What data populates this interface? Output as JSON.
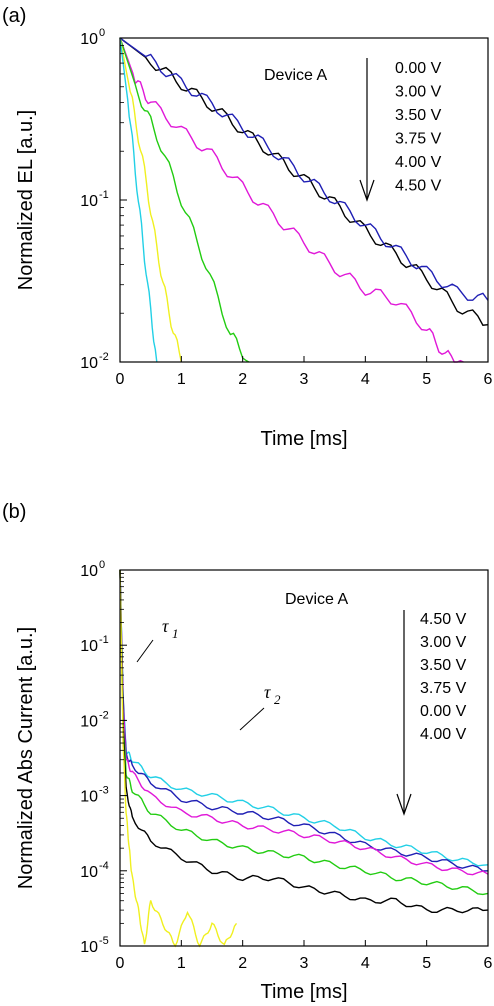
{
  "chart_data": [
    {
      "panel_label": "(a)",
      "type": "line",
      "xlabel": "Time [ms]",
      "ylabel": "Normalized EL [a.u.]",
      "xlim": [
        0,
        6
      ],
      "ylim": [
        0.01,
        1
      ],
      "yscale": "log",
      "xticks": [
        "0",
        "1",
        "2",
        "3",
        "4",
        "5",
        "6"
      ],
      "yticks": [
        {
          "base": "10",
          "exp": "0",
          "value": 1
        },
        {
          "base": "10",
          "exp": "-1",
          "value": 0.1
        },
        {
          "base": "10",
          "exp": "-2",
          "value": 0.01
        }
      ],
      "annotation": "Device A",
      "legend_placement": "top-right",
      "legend": [
        "0.00 V",
        "3.00 V",
        "3.50 V",
        "3.75 V",
        "4.00 V",
        "4.50 V"
      ],
      "series": [
        {
          "color": "#000000",
          "x": [
            0,
            0.5,
            1,
            1.5,
            2,
            2.5,
            3,
            3.5,
            4,
            4.5,
            5,
            5.5,
            6
          ],
          "y": [
            1,
            0.72,
            0.52,
            0.38,
            0.27,
            0.19,
            0.135,
            0.095,
            0.065,
            0.046,
            0.033,
            0.022,
            0.017
          ]
        },
        {
          "color": "#1f1fb4",
          "x": [
            0,
            0.5,
            1,
            1.5,
            2,
            2.5,
            3,
            3.5,
            4,
            4.5,
            5,
            5.5,
            6
          ],
          "y": [
            1,
            0.73,
            0.53,
            0.39,
            0.28,
            0.2,
            0.14,
            0.1,
            0.07,
            0.05,
            0.036,
            0.027,
            0.024
          ]
        },
        {
          "color": "#e018d8",
          "x": [
            0,
            0.25,
            0.5,
            1,
            1.5,
            2,
            2.5,
            3,
            3.5,
            4,
            4.5,
            5,
            5.3,
            5.6
          ],
          "y": [
            1,
            0.55,
            0.4,
            0.27,
            0.19,
            0.12,
            0.08,
            0.055,
            0.038,
            0.028,
            0.024,
            0.016,
            0.011,
            0.01
          ]
        },
        {
          "color": "#22cc11",
          "x": [
            0,
            0.3,
            0.6,
            1,
            1.4,
            1.8,
            2.1
          ],
          "y": [
            1,
            0.45,
            0.25,
            0.1,
            0.04,
            0.015,
            0.01
          ]
        },
        {
          "color": "#f0f020",
          "x": [
            0,
            0.2,
            0.4,
            0.6,
            0.8,
            1.0
          ],
          "y": [
            1,
            0.4,
            0.15,
            0.05,
            0.02,
            0.01
          ]
        },
        {
          "color": "#22d0e6",
          "x": [
            0,
            0.15,
            0.3,
            0.45,
            0.6
          ],
          "y": [
            1,
            0.35,
            0.1,
            0.03,
            0.01
          ]
        }
      ]
    },
    {
      "panel_label": "(b)",
      "type": "line",
      "xlabel": "Time [ms]",
      "ylabel": "Normalized Abs Current [a.u.]",
      "xlim": [
        0,
        6
      ],
      "ylim": [
        1e-05,
        1
      ],
      "yscale": "log",
      "xticks": [
        "0",
        "1",
        "2",
        "3",
        "4",
        "5",
        "6"
      ],
      "yticks": [
        {
          "base": "10",
          "exp": "0",
          "value": 1
        },
        {
          "base": "10",
          "exp": "-1",
          "value": 0.1
        },
        {
          "base": "10",
          "exp": "-2",
          "value": 0.01
        },
        {
          "base": "10",
          "exp": "-3",
          "value": 0.001
        },
        {
          "base": "10",
          "exp": "-4",
          "value": 0.0001
        },
        {
          "base": "10",
          "exp": "-5",
          "value": 1e-05
        }
      ],
      "annotation": "Device A",
      "legend_placement": "top-right",
      "legend": [
        "4.50 V",
        "3.00 V",
        "3.50 V",
        "3.75 V",
        "0.00 V",
        "4.00 V"
      ],
      "tau_labels": [
        {
          "symbol": "τ",
          "subscript": "1"
        },
        {
          "symbol": "τ",
          "subscript": "2"
        }
      ],
      "series": [
        {
          "color": "#22d0e6",
          "x": [
            0,
            0.05,
            0.1,
            0.2,
            0.5,
            1,
            1.5,
            2,
            2.5,
            3,
            3.5,
            4,
            4.5,
            5,
            5.5,
            6
          ],
          "y": [
            1,
            0.02,
            0.004,
            0.003,
            0.0018,
            0.0012,
            0.001,
            0.0008,
            0.00065,
            0.0005,
            0.0004,
            0.00028,
            0.00022,
            0.00018,
            0.00014,
            0.00012
          ]
        },
        {
          "color": "#1f1fb4",
          "x": [
            0,
            0.05,
            0.1,
            0.2,
            0.5,
            1,
            1.5,
            2,
            2.5,
            3,
            3.5,
            4,
            4.5,
            5,
            5.5,
            6
          ],
          "y": [
            1,
            0.02,
            0.0035,
            0.0025,
            0.0015,
            0.0009,
            0.0007,
            0.0006,
            0.0005,
            0.0004,
            0.0003,
            0.00022,
            0.00018,
            0.00015,
            0.00012,
            0.0001
          ]
        },
        {
          "color": "#e018d8",
          "x": [
            0,
            0.05,
            0.1,
            0.2,
            0.5,
            1,
            1.5,
            2,
            2.5,
            3,
            3.5,
            4,
            4.5,
            5,
            5.5,
            6
          ],
          "y": [
            1,
            0.015,
            0.003,
            0.002,
            0.001,
            0.0006,
            0.0005,
            0.0004,
            0.00035,
            0.0003,
            0.00025,
            0.0002,
            0.00015,
            0.00012,
            0.0001,
            9e-05
          ]
        },
        {
          "color": "#22cc11",
          "x": [
            0,
            0.05,
            0.1,
            0.2,
            0.5,
            1,
            1.5,
            2,
            2.5,
            3,
            3.5,
            4,
            4.5,
            5,
            5.5,
            6
          ],
          "y": [
            1,
            0.01,
            0.002,
            0.0012,
            0.0006,
            0.00035,
            0.00025,
            0.0002,
            0.00017,
            0.00015,
            0.00012,
            0.0001,
            8e-05,
            7e-05,
            6e-05,
            5e-05
          ]
        },
        {
          "color": "#000000",
          "x": [
            0,
            0.05,
            0.1,
            0.2,
            0.5,
            1,
            1.5,
            2,
            2.5,
            3,
            3.5,
            4,
            4.5,
            5,
            5.5,
            6
          ],
          "y": [
            1,
            0.008,
            0.0012,
            0.0005,
            0.00025,
            0.00015,
            0.0001,
            8e-05,
            8e-05,
            6e-05,
            5e-05,
            4e-05,
            4e-05,
            3e-05,
            3e-05,
            3e-05
          ]
        },
        {
          "color": "#f0f020",
          "x": [
            0,
            0.05,
            0.1,
            0.15,
            0.2,
            0.3,
            0.4,
            0.5,
            0.7,
            0.9,
            1.1,
            1.3,
            1.5,
            1.7,
            1.9
          ],
          "y": [
            1,
            0.005,
            0.0006,
            0.0002,
            8e-05,
            3e-05,
            1e-05,
            4e-05,
            2e-05,
            1e-05,
            3e-05,
            1e-05,
            2e-05,
            1e-05,
            2e-05
          ]
        }
      ]
    }
  ]
}
